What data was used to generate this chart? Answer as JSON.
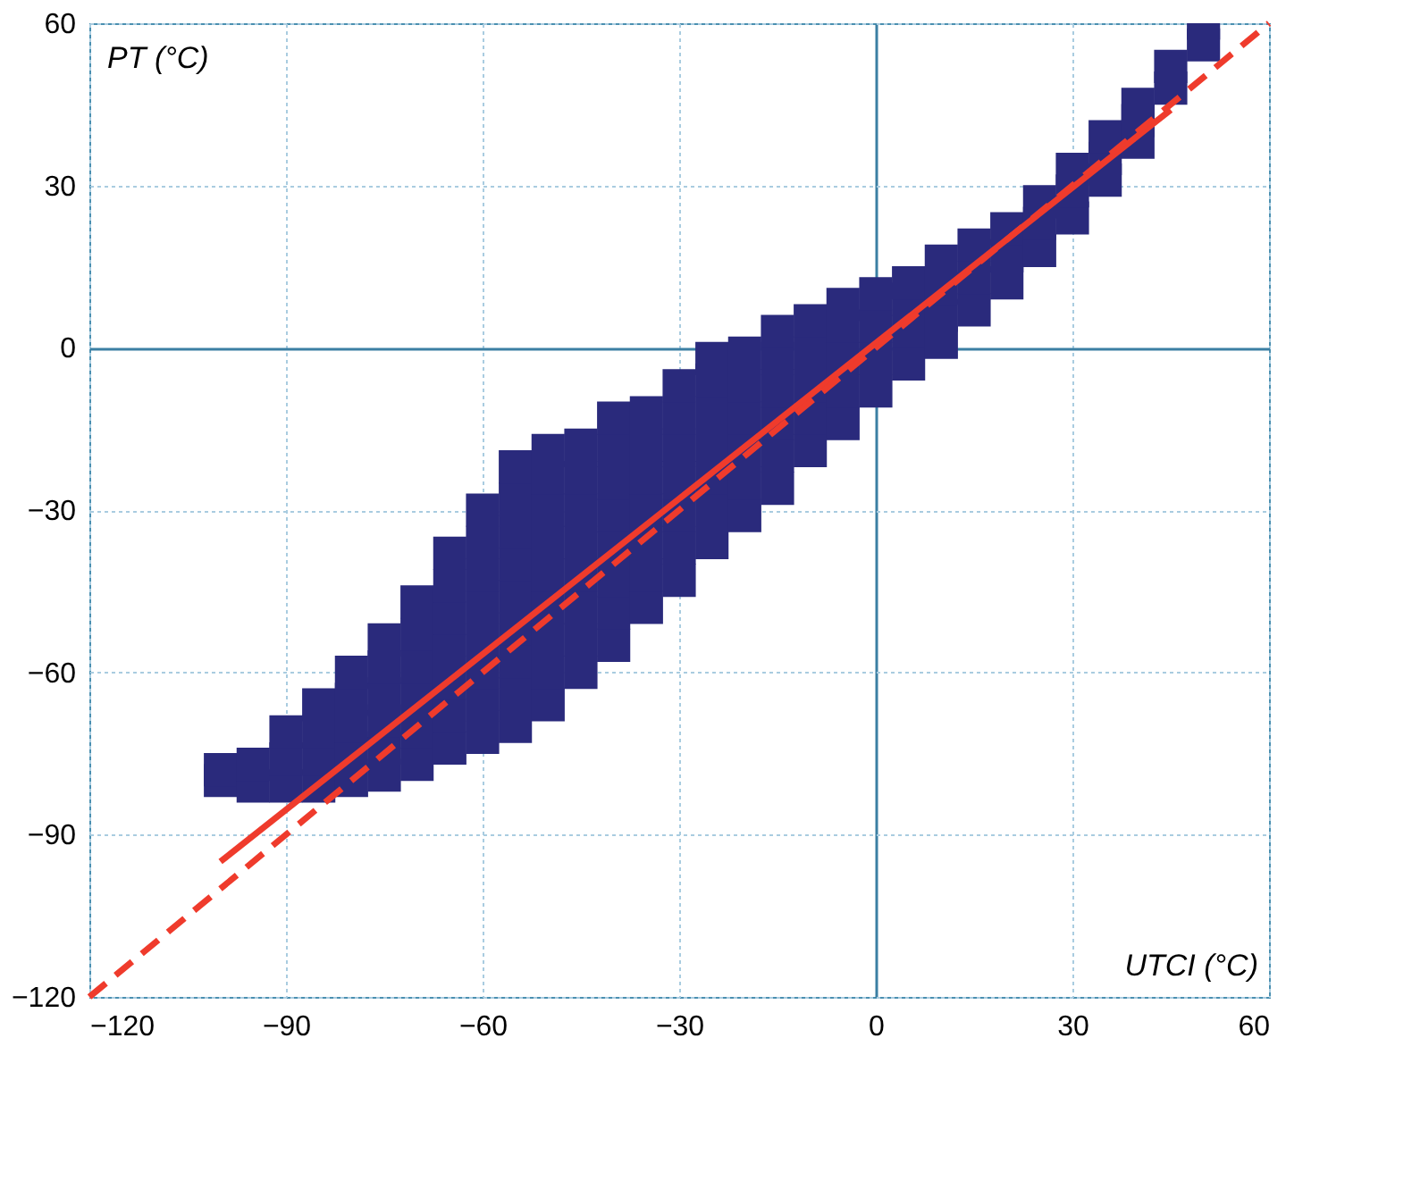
{
  "chart_data": {
    "type": "scatter",
    "xlabel": "UTCI (°C)",
    "ylabel": "PT (°C)",
    "xlim": [
      -120,
      60
    ],
    "ylim": [
      -120,
      60
    ],
    "xticks": [
      -120,
      -90,
      -60,
      -30,
      0,
      30,
      60
    ],
    "yticks": [
      -120,
      -90,
      -60,
      -30,
      0,
      30,
      60
    ],
    "grid": true,
    "marker": "square",
    "series": [
      {
        "color": "#2a2a7c",
        "x": [
          -100,
          -100,
          -95,
          -95,
          -90,
          -90,
          -90,
          -85,
          -85,
          -85,
          -85,
          -80,
          -80,
          -80,
          -80,
          -80,
          -75,
          -75,
          -75,
          -75,
          -75,
          -75,
          -70,
          -70,
          -70,
          -70,
          -70,
          -70,
          -65,
          -65,
          -65,
          -65,
          -65,
          -65,
          -65,
          -60,
          -60,
          -60,
          -60,
          -60,
          -60,
          -60,
          -60,
          -55,
          -55,
          -55,
          -55,
          -55,
          -55,
          -55,
          -55,
          -55,
          -50,
          -50,
          -50,
          -50,
          -50,
          -50,
          -50,
          -50,
          -50,
          -45,
          -45,
          -45,
          -45,
          -45,
          -45,
          -45,
          -45,
          -40,
          -40,
          -40,
          -40,
          -40,
          -40,
          -40,
          -40,
          -35,
          -35,
          -35,
          -35,
          -35,
          -35,
          -35,
          -30,
          -30,
          -30,
          -30,
          -30,
          -30,
          -30,
          -25,
          -25,
          -25,
          -25,
          -25,
          -25,
          -25,
          -20,
          -20,
          -20,
          -20,
          -20,
          -20,
          -15,
          -15,
          -15,
          -15,
          -15,
          -15,
          -10,
          -10,
          -10,
          -10,
          -10,
          -5,
          -5,
          -5,
          -5,
          -5,
          0,
          0,
          0,
          0,
          5,
          5,
          5,
          5,
          10,
          10,
          10,
          10,
          15,
          15,
          15,
          20,
          20,
          20,
          25,
          25,
          25,
          30,
          30,
          30,
          35,
          35,
          35,
          40,
          40,
          40,
          45,
          45,
          50,
          50
        ],
        "values": [
          -80,
          -78,
          -81,
          -77,
          -81,
          -76,
          -71,
          -81,
          -76,
          -71,
          -66,
          -80,
          -75,
          -70,
          -65,
          -60,
          -79,
          -74,
          -69,
          -64,
          -59,
          -54,
          -77,
          -71,
          -65,
          -59,
          -53,
          -47,
          -74,
          -68,
          -62,
          -56,
          -50,
          -44,
          -38,
          -72,
          -66,
          -60,
          -54,
          -48,
          -42,
          -36,
          -30,
          -70,
          -64,
          -58,
          -52,
          -46,
          -40,
          -34,
          -28,
          -22,
          -66,
          -60,
          -54,
          -48,
          -42,
          -36,
          -30,
          -24,
          -19,
          -60,
          -54,
          -48,
          -42,
          -36,
          -30,
          -24,
          -18,
          -55,
          -49,
          -43,
          -37,
          -31,
          -25,
          -19,
          -13,
          -48,
          -42,
          -36,
          -30,
          -24,
          -18,
          -12,
          -43,
          -37,
          -31,
          -25,
          -19,
          -13,
          -7,
          -36,
          -30,
          -24,
          -18,
          -12,
          -6,
          -2,
          -31,
          -25,
          -19,
          -13,
          -7,
          -1,
          -26,
          -20,
          -14,
          -8,
          -2,
          3,
          -19,
          -13,
          -7,
          -1,
          5,
          -14,
          -8,
          -2,
          4,
          8,
          -8,
          -2,
          4,
          10,
          -3,
          3,
          9,
          12,
          1,
          6,
          11,
          16,
          7,
          13,
          19,
          12,
          17,
          22,
          18,
          23,
          27,
          24,
          29,
          33,
          31,
          35,
          39,
          38,
          42,
          45,
          48,
          52,
          56,
          60
        ]
      },
      {
        "type": "line",
        "color": "#ef3b2c",
        "line_style": "solid",
        "marker": "none",
        "x": [
          -100,
          45
        ],
        "values": [
          -95,
          44
        ]
      },
      {
        "type": "line",
        "color": "#ef3b2c",
        "line_style": "dashed",
        "marker": "none",
        "x": [
          -120,
          60
        ],
        "values": [
          -120,
          60
        ]
      }
    ]
  }
}
